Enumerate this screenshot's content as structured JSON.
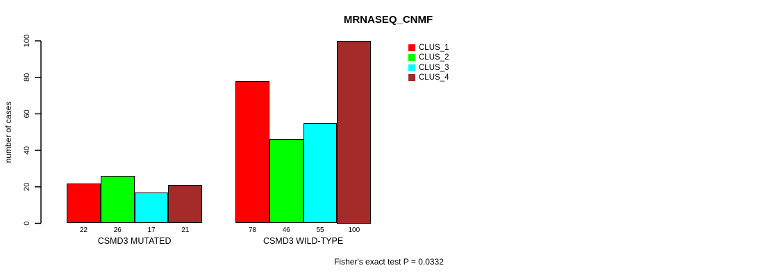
{
  "footnote": "Fisher's exact test P = 0.0332",
  "chart_data": {
    "type": "bar",
    "title": "MRNASEQ_CNMF",
    "xlabel": "",
    "ylabel": "number of cases",
    "categories": [
      "CSMD3 MUTATED",
      "CSMD3 WILD-TYPE"
    ],
    "series": [
      {
        "name": "CLUS_1",
        "color": "#FF0000",
        "values": [
          22,
          78
        ]
      },
      {
        "name": "CLUS_2",
        "color": "#00FF00",
        "values": [
          26,
          46
        ]
      },
      {
        "name": "CLUS_3",
        "color": "#00FFFF",
        "values": [
          17,
          55
        ]
      },
      {
        "name": "CLUS_4",
        "color": "#A52A2A",
        "values": [
          21,
          100
        ]
      }
    ],
    "bar_value_labels": true,
    "yticks": [
      0,
      20,
      40,
      60,
      80,
      100
    ],
    "ylim": [
      0,
      100
    ],
    "grid": false,
    "legend_position": "top-right",
    "legend_entries": [
      "CLUS_1",
      "CLUS_2",
      "CLUS_3",
      "CLUS_4"
    ]
  }
}
